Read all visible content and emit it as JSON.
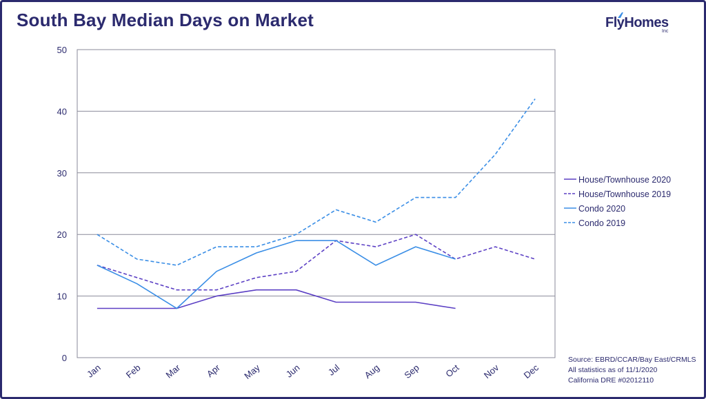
{
  "title": "South Bay Median Days on Market",
  "logo": {
    "text": "FlyHomes",
    "suffix": "Inc"
  },
  "source_lines": [
    "Source: EBRD/CCAR/Bay East/CRMLS",
    "All statistics as of 11/1/2020",
    "California DRE #02012110"
  ],
  "colors": {
    "title": "#2b2a6e",
    "house": "#5b3fc4",
    "condo": "#3a8ee6"
  },
  "chart_data": {
    "type": "line",
    "categories": [
      "Jan",
      "Feb",
      "Mar",
      "Apr",
      "May",
      "Jun",
      "Jul",
      "Aug",
      "Sep",
      "Oct",
      "Nov",
      "Dec"
    ],
    "ylim": [
      0,
      50
    ],
    "yticks": [
      0,
      10,
      20,
      30,
      40,
      50
    ],
    "grid": true,
    "legend_position": "right",
    "series": [
      {
        "name": "House/Townhouse 2020",
        "dash": false,
        "color": "#5b3fc4",
        "values": [
          8,
          8,
          8,
          10,
          11,
          11,
          9,
          9,
          9,
          8,
          null,
          null
        ]
      },
      {
        "name": "House/Townhouse 2019",
        "dash": true,
        "color": "#5b3fc4",
        "values": [
          15,
          13,
          11,
          11,
          13,
          14,
          19,
          18,
          20,
          16,
          18,
          16
        ]
      },
      {
        "name": "Condo 2020",
        "dash": false,
        "color": "#3a8ee6",
        "values": [
          15,
          12,
          8,
          14,
          17,
          19,
          19,
          15,
          18,
          16,
          null,
          null
        ]
      },
      {
        "name": "Condo 2019",
        "dash": true,
        "color": "#3a8ee6",
        "values": [
          20,
          16,
          15,
          18,
          18,
          20,
          24,
          22,
          26,
          26,
          33,
          42
        ]
      }
    ]
  }
}
